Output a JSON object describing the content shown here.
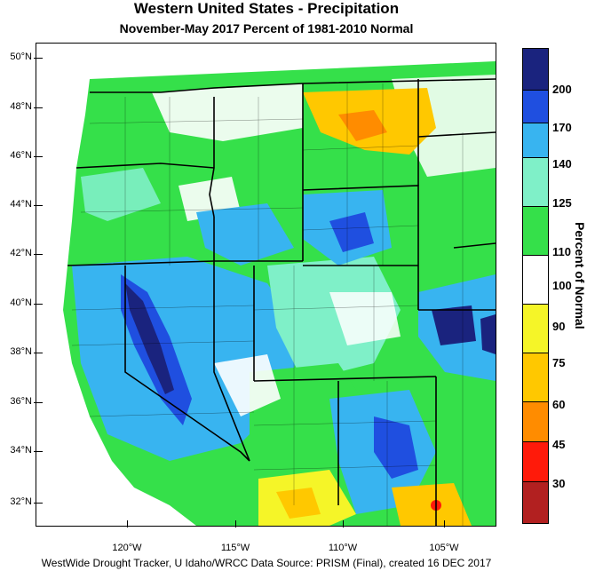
{
  "header": {
    "title": "Western United States - Precipitation",
    "subtitle": "November-May 2017  Percent of 1981-2010 Normal"
  },
  "axes": {
    "lat_labels": [
      "50°N",
      "48°N",
      "46°N",
      "44°N",
      "42°N",
      "40°N",
      "38°N",
      "36°N",
      "34°N",
      "32°N"
    ],
    "lon_labels": [
      "120°W",
      "115°W",
      "110°W",
      "105°W"
    ]
  },
  "colorbar": {
    "title": "Percent of Normal",
    "labels": [
      "200",
      "170",
      "140",
      "125",
      "110",
      "100",
      "90",
      "75",
      "60",
      "45",
      "30"
    ],
    "colors": [
      "#1a237e",
      "#1f4fe0",
      "#38b4f0",
      "#7ff0c8",
      "#35e04a",
      "#ffffff",
      "#f5f528",
      "#ffc800",
      "#ff8c00",
      "#ff1a0a",
      "#b22020"
    ]
  },
  "footer": "WestWide Drought Tracker, U Idaho/WRCC Data Source: PRISM (Final), created 16 DEC 2017"
}
